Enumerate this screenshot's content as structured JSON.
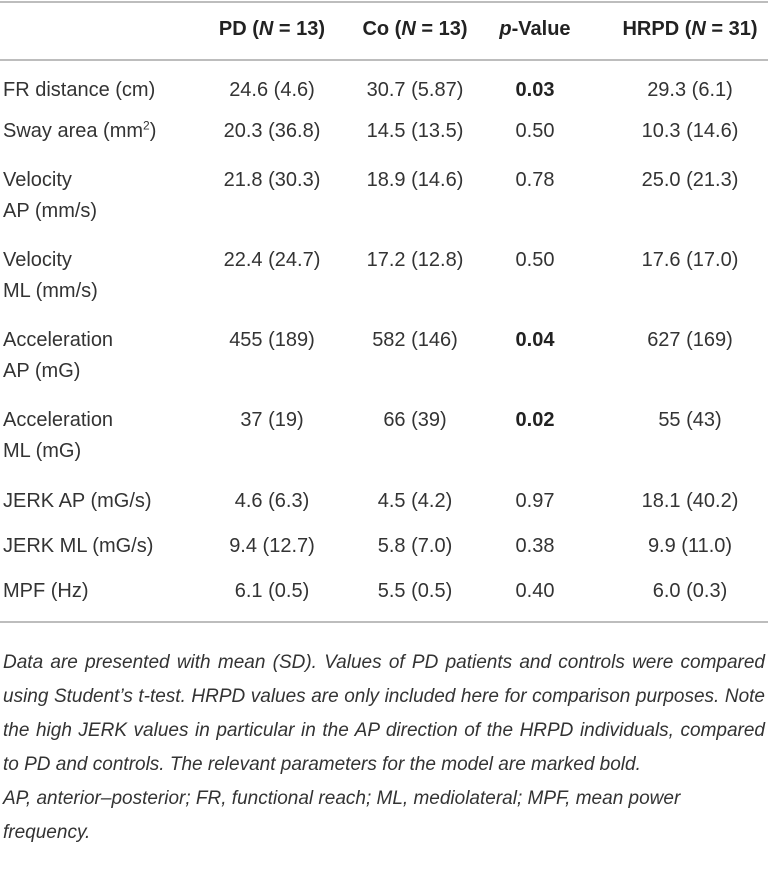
{
  "header": {
    "columns": [
      {
        "pre": "PD (",
        "ital": "N",
        "post": " = 13)"
      },
      {
        "pre": "Co (",
        "ital": "N",
        "post": " = 13)"
      },
      {
        "pre": "",
        "ital": "p",
        "post": "-Value"
      },
      {
        "pre": "HRPD (",
        "ital": "N",
        "post": " = 31)"
      }
    ]
  },
  "rows": [
    {
      "label": [
        "FR distance (cm)"
      ],
      "pd": "24.6 (4.6)",
      "co": "30.7 (5.87)",
      "p": "0.03",
      "p_bold": true,
      "hrpd": "29.3 (6.1)"
    },
    {
      "label": [
        "Sway area (mm"
      ],
      "sup": "2",
      "label_end": ")",
      "pd": "20.3 (36.8)",
      "co": "14.5 (13.5)",
      "p": "0.50",
      "p_bold": false,
      "hrpd": "10.3 (14.6)"
    },
    {
      "label": [
        "Velocity",
        "AP (mm/s)"
      ],
      "pd": "21.8 (30.3)",
      "co": "18.9 (14.6)",
      "p": "0.78",
      "p_bold": false,
      "hrpd": "25.0 (21.3)"
    },
    {
      "label": [
        "Velocity",
        "ML (mm/s)"
      ],
      "pd": "22.4 (24.7)",
      "co": "17.2 (12.8)",
      "p": "0.50",
      "p_bold": false,
      "hrpd": "17.6 (17.0)"
    },
    {
      "label": [
        "Acceleration",
        "AP (mG)"
      ],
      "pd": "455 (189)",
      "co": "582 (146)",
      "p": "0.04",
      "p_bold": true,
      "hrpd": "627 (169)"
    },
    {
      "label": [
        "Acceleration",
        "ML (mG)"
      ],
      "pd": "37 (19)",
      "co": "66 (39)",
      "p": "0.02",
      "p_bold": true,
      "hrpd": "55 (43)"
    },
    {
      "label": [
        "JERK AP (mG/s)"
      ],
      "pd": "4.6 (6.3)",
      "co": "4.5 (4.2)",
      "p": "0.97",
      "p_bold": false,
      "hrpd": "18.1 (40.2)"
    },
    {
      "label": [
        "JERK ML (mG/s)"
      ],
      "pd": "9.4 (12.7)",
      "co": "5.8 (7.0)",
      "p": "0.38",
      "p_bold": false,
      "hrpd": "9.9 (11.0)"
    },
    {
      "label": [
        "MPF (Hz)"
      ],
      "pd": "6.1 (0.5)",
      "co": "5.5 (0.5)",
      "p": "0.40",
      "p_bold": false,
      "hrpd": "6.0 (0.3)"
    }
  ],
  "footnotes": {
    "note": "Data are presented with mean (SD). Values of PD patients and controls were compared using Student’s t-test. HRPD values are only included here for comparison purposes. Note the high JERK values in particular in the AP direction of the HRPD individuals, compared to PD and controls. The relevant parameters for the model are marked bold.",
    "abbreviations": "AP, anterior–posterior; FR, functional reach; ML, mediolateral; MPF, mean power frequency."
  }
}
